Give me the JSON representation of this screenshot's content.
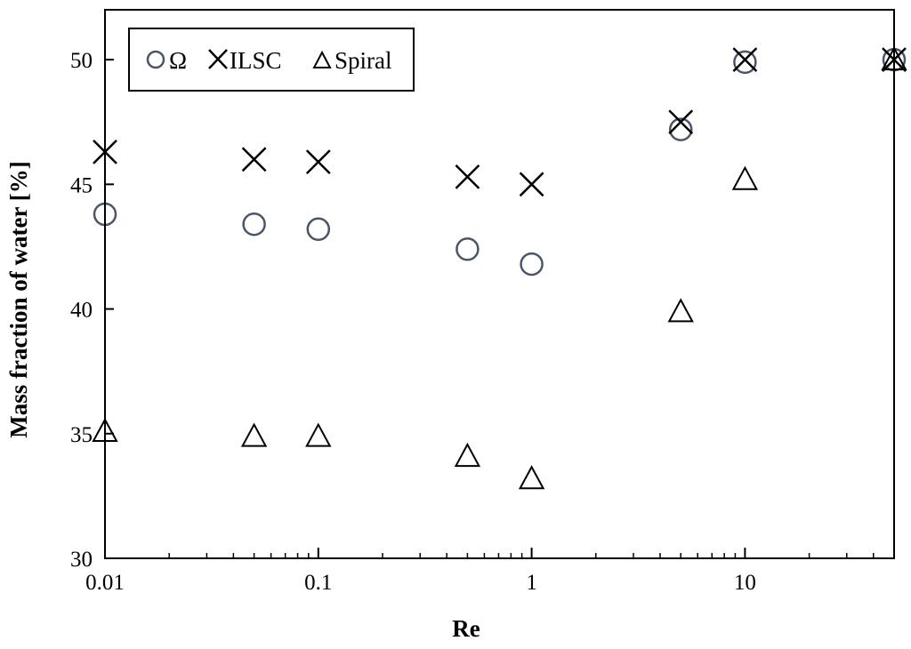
{
  "chart_data": {
    "type": "scatter",
    "title": "",
    "xlabel": "Re",
    "ylabel": "Mass fraction of water [%]",
    "xscale": "log",
    "xlim": [
      0.01,
      50
    ],
    "ylim": [
      30,
      52
    ],
    "xticks": [
      0.01,
      0.1,
      1,
      10
    ],
    "xtick_labels": [
      "0.01",
      "0.1",
      "1",
      "10"
    ],
    "yticks": [
      30,
      35,
      40,
      45,
      50
    ],
    "ytick_labels": [
      "30",
      "35",
      "40",
      "45",
      "50"
    ],
    "grid": false,
    "legend_position": "top-left",
    "series": [
      {
        "name": "Ω",
        "marker": "circle",
        "color": "#4a5668",
        "x": [
          0.01,
          0.05,
          0.1,
          0.5,
          1,
          5,
          10,
          50
        ],
        "y": [
          43.8,
          43.4,
          43.2,
          42.4,
          41.8,
          47.2,
          49.9,
          50.0
        ]
      },
      {
        "name": "ILSC",
        "marker": "cross",
        "color": "#000000",
        "x": [
          0.01,
          0.05,
          0.1,
          0.5,
          1,
          5,
          10,
          50
        ],
        "y": [
          46.3,
          46.0,
          45.9,
          45.3,
          45.0,
          47.5,
          50.0,
          50.0
        ]
      },
      {
        "name": "Spiral",
        "marker": "triangle",
        "color": "#000000",
        "x": [
          0.01,
          0.05,
          0.1,
          0.5,
          1,
          5,
          10,
          50
        ],
        "y": [
          35.1,
          34.9,
          34.9,
          34.1,
          33.2,
          39.9,
          45.2,
          50.0
        ]
      }
    ]
  }
}
